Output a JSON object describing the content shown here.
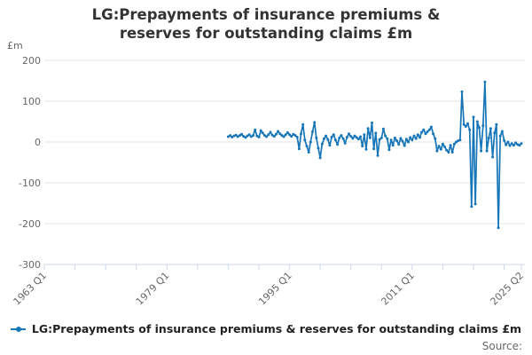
{
  "title": {
    "text": "LG:Prepayments of insurance premiums & reserves for outstanding claims £m"
  },
  "y_axis": {
    "unit_label": "£m",
    "ticks": [
      200,
      100,
      0,
      -100,
      -200,
      -300
    ],
    "min": -300,
    "max": 200
  },
  "x_axis": {
    "labeled_ticks": [
      "1963 Q1",
      "1979 Q1",
      "1995 Q1",
      "2011 Q1",
      "2025 Q2"
    ],
    "tick_interval_years": 4
  },
  "legend": {
    "label": "LG:Prepayments of insurance premiums & reserves for outstanding claims £m"
  },
  "source": {
    "label": "Source:"
  },
  "colors": {
    "series": "#1776b8",
    "grid": "#e6e6e6",
    "axis": "#ccd6eb",
    "tick_label": "#666666",
    "title": "#333333"
  },
  "chart_data": {
    "type": "line",
    "title": "LG:Prepayments of insurance premiums & reserves for outstanding claims £m",
    "ylabel": "£m",
    "ylim": [
      -300,
      200
    ],
    "x_range": [
      "1963 Q1",
      "2025 Q2"
    ],
    "grid": "horizontal",
    "legend_position": "bottom",
    "series": [
      {
        "name": "LG:Prepayments of insurance premiums & reserves for outstanding claims £m",
        "start": "1987 Q1",
        "frequency": "quarterly",
        "values": [
          13,
          16,
          12,
          15,
          17,
          13,
          16,
          19,
          14,
          11,
          15,
          18,
          13,
          16,
          30,
          15,
          12,
          28,
          22,
          16,
          13,
          18,
          24,
          17,
          14,
          19,
          26,
          20,
          16,
          13,
          18,
          23,
          18,
          14,
          19,
          16,
          12,
          -17,
          20,
          43,
          5,
          -10,
          -25,
          0,
          25,
          48,
          10,
          -15,
          -39,
          -5,
          8,
          15,
          6,
          -8,
          12,
          18,
          5,
          -6,
          10,
          16,
          8,
          -3,
          12,
          20,
          14,
          9,
          15,
          11,
          7,
          13,
          -10,
          18,
          -18,
          33,
          10,
          47,
          -17,
          22,
          -33,
          6,
          10,
          32,
          15,
          8,
          -19,
          5,
          -8,
          10,
          3,
          -6,
          9,
          2,
          -9,
          7,
          0,
          11,
          5,
          15,
          8,
          18,
          11,
          24,
          30,
          20,
          25,
          30,
          37,
          20,
          8,
          -22,
          -10,
          -18,
          -5,
          -12,
          -20,
          -25,
          -8,
          -25,
          -5,
          0,
          3,
          5,
          123,
          43,
          38,
          45,
          30,
          -158,
          61,
          -152,
          50,
          35,
          -22,
          40,
          147,
          -22,
          10,
          33,
          -37,
          22,
          43,
          -210,
          15,
          26,
          4,
          -7,
          0,
          -9,
          -4,
          -8,
          -2,
          -6,
          -8,
          -4
        ]
      }
    ]
  }
}
